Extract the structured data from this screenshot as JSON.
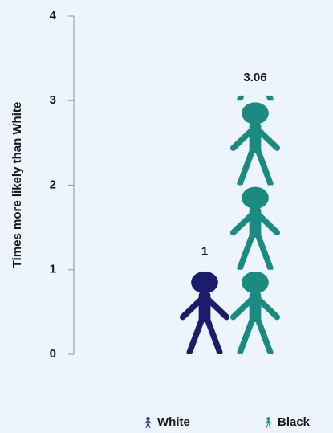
{
  "chart_data": {
    "type": "pictograph",
    "y_label": "Times more likely than White",
    "series": [
      {
        "name": "White",
        "color": "#1c1c6e",
        "values": [
          1
        ]
      },
      {
        "name": "Black",
        "color": "#1b8a80",
        "values": [
          3.06
        ]
      }
    ],
    "ylim": [
      0,
      4
    ],
    "yticks": [
      0,
      1,
      2,
      3,
      4
    ]
  }
}
